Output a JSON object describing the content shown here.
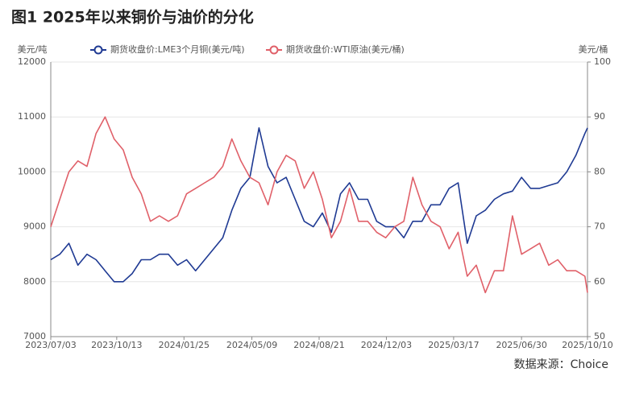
{
  "chart_data": {
    "type": "line",
    "title": "图1  2025年以来铜价与油价的分化",
    "y_label": "美元/吨",
    "y2_label": "美元/桶",
    "source": "数据来源：Choice",
    "x": [
      "2023/07/03",
      "2023/07/17",
      "2023/07/31",
      "2023/08/14",
      "2023/08/28",
      "2023/09/11",
      "2023/09/25",
      "2023/10/09",
      "2023/10/23",
      "2023/11/06",
      "2023/11/20",
      "2023/12/04",
      "2023/12/18",
      "2024/01/01",
      "2024/01/15",
      "2024/01/29",
      "2024/02/12",
      "2024/02/26",
      "2024/03/11",
      "2024/03/25",
      "2024/04/08",
      "2024/04/22",
      "2024/05/06",
      "2024/05/20",
      "2024/06/03",
      "2024/06/17",
      "2024/07/01",
      "2024/07/15",
      "2024/07/29",
      "2024/08/12",
      "2024/08/26",
      "2024/09/09",
      "2024/09/23",
      "2024/10/07",
      "2024/10/21",
      "2024/11/04",
      "2024/11/18",
      "2024/12/02",
      "2024/12/16",
      "2024/12/30",
      "2025/01/13",
      "2025/01/27",
      "2025/02/10",
      "2025/02/24",
      "2025/03/10",
      "2025/03/24",
      "2025/04/07",
      "2025/04/21",
      "2025/05/05",
      "2025/05/19",
      "2025/06/02",
      "2025/06/16",
      "2025/06/30",
      "2025/07/14",
      "2025/07/28",
      "2025/08/11",
      "2025/08/25",
      "2025/09/08",
      "2025/09/22",
      "2025/10/06",
      "2025/10/10"
    ],
    "xlim": [
      "2023/07/03",
      "2025/10/10"
    ],
    "xticks": [
      "2023/07/03",
      "2023/10/13",
      "2024/01/25",
      "2024/05/09",
      "2024/08/21",
      "2024/12/03",
      "2025/03/17",
      "2025/06/30",
      "2025/10/10"
    ],
    "ylim": [
      7000,
      12000
    ],
    "yticks": [
      7000,
      8000,
      9000,
      10000,
      11000,
      12000
    ],
    "y2lim": [
      50,
      100
    ],
    "y2ticks": [
      50,
      60,
      70,
      80,
      90,
      100
    ],
    "grid": true,
    "series": [
      {
        "name": "期货收盘价:LME3个月铜(美元/吨)",
        "color": "#1f3a93",
        "axis": "y",
        "values": [
          8400,
          8500,
          8700,
          8300,
          8500,
          8400,
          8200,
          8000,
          8000,
          8150,
          8400,
          8400,
          8500,
          8500,
          8300,
          8400,
          8200,
          8400,
          8600,
          8800,
          9300,
          9700,
          9900,
          10800,
          10100,
          9800,
          9900,
          9500,
          9100,
          9000,
          9250,
          8900,
          9600,
          9800,
          9500,
          9500,
          9100,
          9000,
          9000,
          8800,
          9100,
          9100,
          9400,
          9400,
          9700,
          9800,
          8700,
          9200,
          9300,
          9500,
          9600,
          9650,
          9900,
          9700,
          9700,
          9750,
          9800,
          10000,
          10300,
          10700,
          10800
        ]
      },
      {
        "name": "期货收盘价:WTI原油(美元/桶)",
        "color": "#e06069",
        "axis": "y2",
        "values": [
          70,
          75,
          80,
          82,
          81,
          87,
          90,
          86,
          84,
          79,
          76,
          71,
          72,
          71,
          72,
          76,
          77,
          78,
          79,
          81,
          86,
          82,
          79,
          78,
          74,
          80,
          83,
          82,
          77,
          80,
          75,
          68,
          71,
          77,
          71,
          71,
          69,
          68,
          70,
          71,
          79,
          74,
          71,
          70,
          66,
          69,
          61,
          63,
          58,
          62,
          62,
          72,
          65,
          66,
          67,
          63,
          64,
          62,
          62,
          61,
          58
        ]
      }
    ]
  }
}
